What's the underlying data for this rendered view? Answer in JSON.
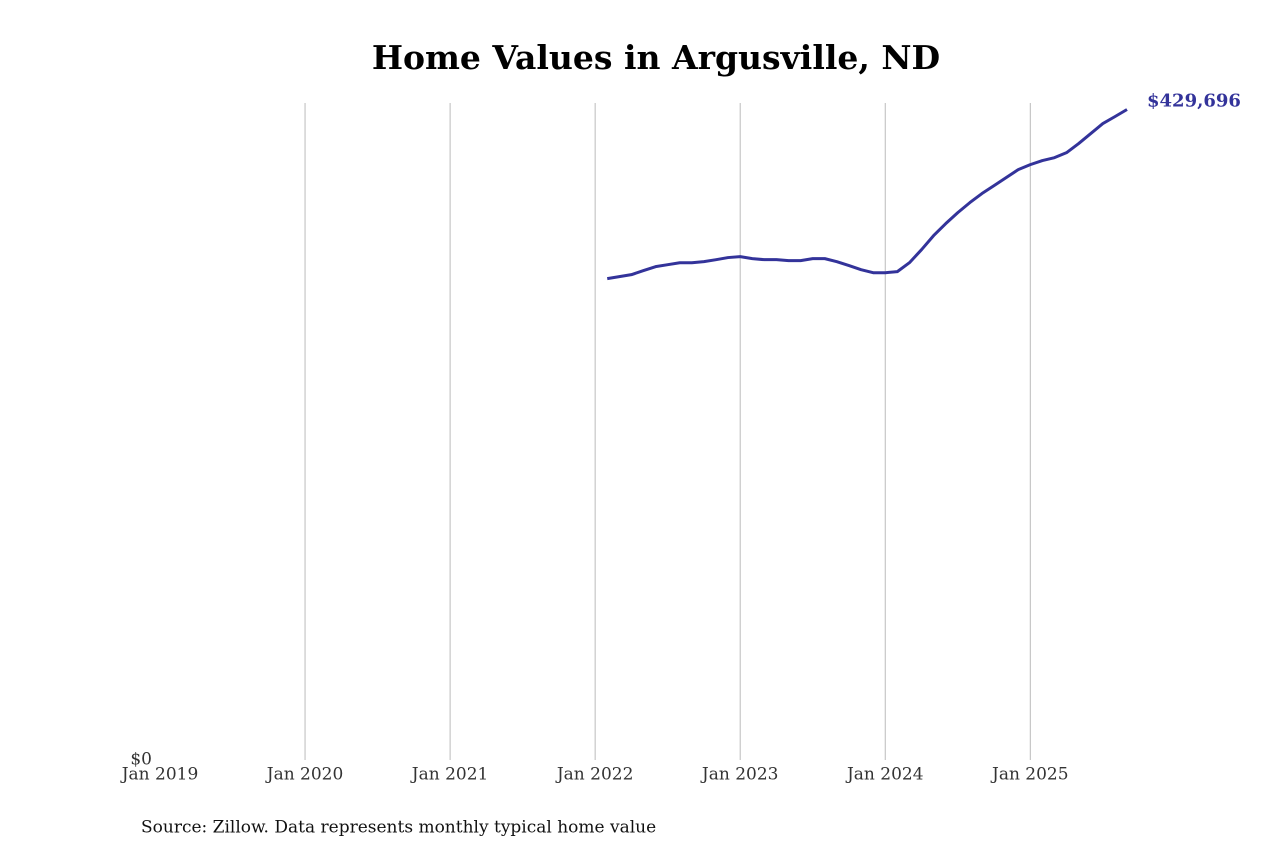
{
  "chart_data": {
    "type": "line",
    "title": "Home Values in Argusville, ND",
    "source": "Source: Zillow. Data represents monthly typical home value",
    "x": [
      "2022-02",
      "2022-03",
      "2022-04",
      "2022-05",
      "2022-06",
      "2022-07",
      "2022-08",
      "2022-09",
      "2022-10",
      "2022-11",
      "2022-12",
      "2023-01",
      "2023-02",
      "2023-03",
      "2023-04",
      "2023-05",
      "2023-06",
      "2023-07",
      "2023-08",
      "2023-09",
      "2023-10",
      "2023-11",
      "2023-12",
      "2024-01",
      "2024-02",
      "2024-03",
      "2024-04",
      "2024-05",
      "2024-06",
      "2024-07",
      "2024-08",
      "2024-09",
      "2024-10",
      "2024-11",
      "2024-12",
      "2025-01",
      "2025-02",
      "2025-03",
      "2025-04",
      "2025-05",
      "2025-06",
      "2025-07",
      "2025-08",
      "2025-09"
    ],
    "series": [
      {
        "color": "#33339a",
        "values": [
          318000,
          319300,
          320600,
          323300,
          325900,
          327200,
          328500,
          328500,
          329200,
          330500,
          331900,
          332500,
          331200,
          330500,
          330500,
          329900,
          329900,
          331200,
          331200,
          329200,
          326600,
          323900,
          321900,
          321900,
          322600,
          328500,
          337100,
          346400,
          354300,
          361600,
          368200,
          374200,
          379400,
          384700,
          390000,
          393300,
          396000,
          397900,
          401200,
          407200,
          413800,
          420400,
          425000,
          429696
        ],
        "value_labels": [
          null,
          null,
          null,
          null,
          null,
          null,
          null,
          null,
          null,
          null,
          null,
          null,
          null,
          null,
          null,
          null,
          null,
          null,
          null,
          null,
          null,
          null,
          null,
          null,
          null,
          null,
          null,
          null,
          null,
          null,
          null,
          null,
          null,
          null,
          null,
          null,
          null,
          null,
          null,
          null,
          null,
          null,
          null,
          "$429,696"
        ]
      }
    ],
    "xlim": [
      "2019-01",
      "2025-09"
    ],
    "xticks": [
      {
        "value": "2019-01",
        "label": "Jan 2019"
      },
      {
        "value": "2020-01",
        "label": "Jan 2020"
      },
      {
        "value": "2021-01",
        "label": "Jan 2021"
      },
      {
        "value": "2022-01",
        "label": "Jan 2022"
      },
      {
        "value": "2023-01",
        "label": "Jan 2023"
      },
      {
        "value": "2024-01",
        "label": "Jan 2024"
      },
      {
        "value": "2025-01",
        "label": "Jan 2025"
      }
    ],
    "ylim": [
      0,
      434000
    ],
    "yticks": [
      {
        "value": 0,
        "label": "$0"
      }
    ],
    "grid": "x"
  }
}
